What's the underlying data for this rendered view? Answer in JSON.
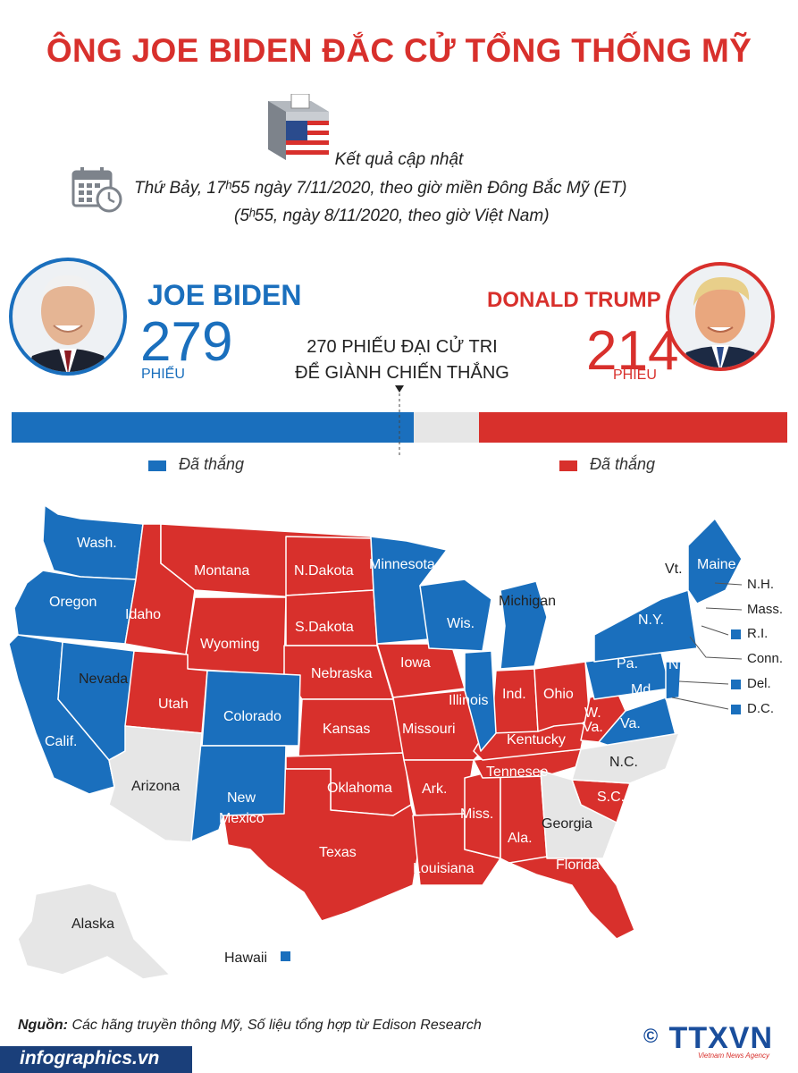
{
  "title": "ÔNG JOE BIDEN ĐẮC CỬ TỔNG THỐNG MỸ",
  "update": {
    "heading": "Kết quả cập nhật",
    "line1": "Thứ Bảy, 17ʰ55 ngày 7/11/2020, theo giờ miền Đông Bắc Mỹ (ET)",
    "line2": "(5ʰ55, ngày 8/11/2020, theo giờ Việt Nam)"
  },
  "candidates": {
    "biden": {
      "name": "JOE BIDEN",
      "votes": "279",
      "unit": "PHIẾU",
      "color": "#1a6fbd",
      "electoral_votes": 279
    },
    "trump": {
      "name": "DONALD TRUMP",
      "votes": "214",
      "unit": "PHIẾU",
      "color": "#d8302c",
      "electoral_votes": 214
    }
  },
  "threshold": {
    "line1": "270 PHIẾU ĐẠI CỬ TRI",
    "line2": "ĐỂ GIÀNH CHIẾN THẮNG",
    "value": 270,
    "total": 538
  },
  "legend": {
    "biden_won": "Đã thắng",
    "trump_won": "Đã thắng"
  },
  "colors": {
    "democrat": "#1a6fbd",
    "republican": "#d8302c",
    "undecided": "#e6e6e6"
  },
  "map": {
    "labels": {
      "wash": "Wash.",
      "oregon": "Oregon",
      "idaho": "Idaho",
      "montana": "Montana",
      "ndakota": "N.Dakota",
      "minnesota": "Minnesota",
      "wyoming": "Wyoming",
      "sdakota": "S.Dakota",
      "wis": "Wis.",
      "michigan": "Michigan",
      "nevada": "Nevada",
      "nebraska": "Nebraska",
      "iowa": "Iowa",
      "calif": "Calif.",
      "utah": "Utah",
      "colorado": "Colorado",
      "kansas": "Kansas",
      "missouri": "Missouri",
      "illinois": "Illinois",
      "ind": "Ind.",
      "ohio": "Ohio",
      "pa": "Pa.",
      "ny": "N.Y.",
      "wva": "W.",
      "wva2": "Va.",
      "va": "Va.",
      "md": "Md.",
      "kentucky": "Kentucky",
      "tennesee": "Tennesee",
      "nc": "N.C.",
      "sc": "S.C.",
      "arizona": "Arizona",
      "newmexico1": "New",
      "newmexico2": "Mexico",
      "oklahoma": "Oklahoma",
      "ark": "Ark.",
      "miss": "Miss.",
      "ala": "Ala.",
      "georgia": "Georgia",
      "texas": "Texas",
      "louisiana": "Louisiana",
      "florida": "Florida",
      "alaska": "Alaska",
      "hawaii": "Hawaii",
      "vt": "Vt.",
      "maine": "Maine",
      "nj": "N.J."
    },
    "northeast": {
      "nh": "N.H.",
      "mass": "Mass.",
      "ri": "R.I.",
      "conn": "Conn.",
      "del": "Del.",
      "dc": "D.C."
    }
  },
  "source": {
    "label": "Nguồn:",
    "text": "Các hãng truyền thông Mỹ, Số liệu tổng hợp từ Edison Research"
  },
  "footer": {
    "site": "infographics.vn",
    "agency": "TTXVN",
    "agency_sub": "Vietnam News Agency",
    "copyright": "©"
  }
}
